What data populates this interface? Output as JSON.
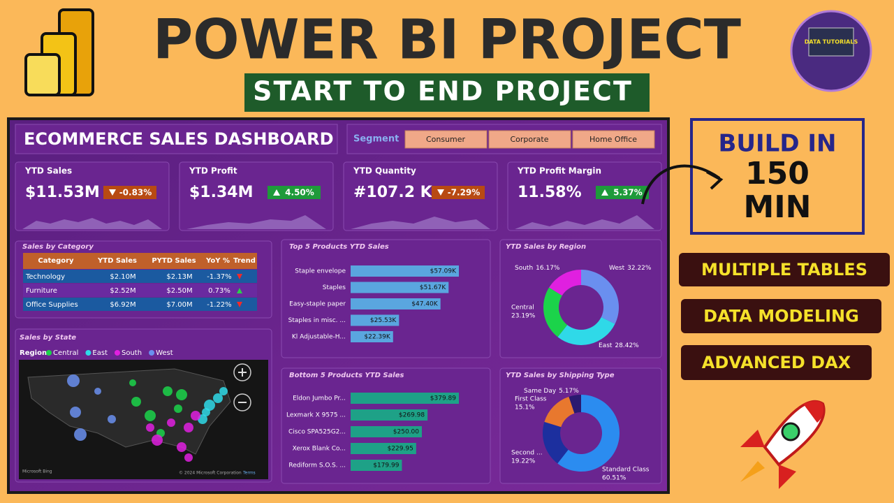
{
  "header": {
    "title": "POWER BI PROJECT",
    "subtitle": "START TO END PROJECT",
    "logo_text": "DATA TUTORIALS"
  },
  "badge": {
    "line1": "BUILD IN",
    "line2": "150",
    "line3": "MIN"
  },
  "features": [
    "MULTIPLE TABLES",
    "DATA MODELING",
    "ADVANCED DAX"
  ],
  "dashboard": {
    "title": "ECOMMERCE SALES DASHBOARD",
    "segment_label": "Segment",
    "segments": [
      "Consumer",
      "Corporate",
      "Home Office"
    ],
    "kpis": [
      {
        "label": "YTD Sales",
        "value": "$11.53M",
        "change": "-0.83%",
        "direction": "down"
      },
      {
        "label": "YTD Profit",
        "value": "$1.34M",
        "change": "4.50%",
        "direction": "up"
      },
      {
        "label": "YTD Quantity",
        "value": "#107.2 K",
        "change": "-7.29%",
        "direction": "down"
      },
      {
        "label": "YTD Profit Margin",
        "value": "11.58%",
        "change": "5.37%",
        "direction": "up"
      }
    ],
    "category_table": {
      "title": "Sales by Category",
      "columns": [
        "Category",
        "YTD Sales",
        "PYTD Sales",
        "YoY %",
        "Trend"
      ],
      "rows": [
        [
          "Technology",
          "$2.10M",
          "$2.13M",
          "-1.37%"
        ],
        [
          "Furniture",
          "$2.52M",
          "$2.50M",
          "0.73%"
        ],
        [
          "Office Supplies",
          "$6.92M",
          "$7.00M",
          "-1.22%"
        ]
      ],
      "trends": [
        "down",
        "up",
        "down"
      ]
    },
    "map": {
      "title": "Sales by State",
      "legend_title": "Region",
      "legend": [
        {
          "name": "Central",
          "color": "#1bd34a"
        },
        {
          "name": "East",
          "color": "#2fd9e8"
        },
        {
          "name": "South",
          "color": "#e020e0"
        },
        {
          "name": "West",
          "color": "#6a8fef"
        }
      ],
      "credits": [
        "Microsoft Bing",
        "© 2024 Microsoft Corporation",
        "Terms"
      ]
    },
    "top_products": {
      "title": "Top 5 Products YTD Sales",
      "color": "#5aa6df",
      "bars": [
        {
          "name": "Staple envelope",
          "value": 57090,
          "label": "$57.09K"
        },
        {
          "name": "Staples",
          "value": 51670,
          "label": "$51.67K"
        },
        {
          "name": "Easy-staple paper",
          "value": 47400,
          "label": "$47.40K"
        },
        {
          "name": "Staples in misc. ...",
          "value": 25530,
          "label": "$25.53K"
        },
        {
          "name": "Kl Adjustable-H...",
          "value": 22390,
          "label": "$22.39K"
        }
      ]
    },
    "bottom_products": {
      "title": "Bottom 5 Products YTD Sales",
      "color": "#1ea187",
      "bars": [
        {
          "name": "Eldon Jumbo Pr...",
          "value": 379.89,
          "label": "$379.89"
        },
        {
          "name": "Lexmark X 9575 ...",
          "value": 269.98,
          "label": "$269.98"
        },
        {
          "name": "Cisco SPA525G2...",
          "value": 250.0,
          "label": "$250.00"
        },
        {
          "name": "Xerox Blank Co...",
          "value": 229.95,
          "label": "$229.95"
        },
        {
          "name": "Rediform S.O.S. ...",
          "value": 179.99,
          "label": "$179.99"
        }
      ]
    },
    "region": {
      "title": "YTD Sales by Region",
      "slices": [
        {
          "name": "West",
          "value": 32.22,
          "label": "32.22%",
          "color": "#6a8fef"
        },
        {
          "name": "East",
          "value": 28.42,
          "label": "28.42%",
          "color": "#2fd9e8"
        },
        {
          "name": "Central",
          "value": 23.19,
          "label": "23.19%",
          "color": "#1bd34a"
        },
        {
          "name": "South",
          "value": 16.17,
          "label": "16.17%",
          "color": "#e020e0"
        }
      ]
    },
    "shipping": {
      "title": "YTD Sales by Shipping Type",
      "slices": [
        {
          "name": "Standard Class",
          "value": 60.51,
          "label": "60.51%",
          "color": "#2b8cf0"
        },
        {
          "name": "Second ...",
          "value": 19.22,
          "label": "19.22%",
          "color": "#1c2f9e"
        },
        {
          "name": "First Class",
          "value": 15.1,
          "label": "15.1%",
          "color": "#e8782e"
        },
        {
          "name": "Same Day",
          "value": 5.17,
          "label": "5.17%",
          "color": "#2a1a70"
        }
      ]
    }
  }
}
